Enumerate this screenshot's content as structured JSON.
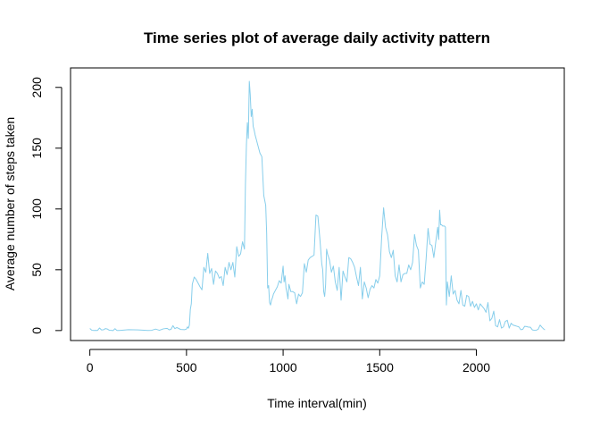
{
  "chart_data": {
    "type": "line",
    "title": "Time series plot of average daily activity pattern",
    "xlabel": "Time interval(min)",
    "ylabel": "Average number of steps taken",
    "xlim": [
      -100,
      2455
    ],
    "ylim": [
      -8.2,
      216
    ],
    "x_ticks": [
      0,
      500,
      1000,
      1500,
      2000
    ],
    "y_ticks": [
      0,
      50,
      100,
      150,
      200
    ],
    "grid": false,
    "legend": "none",
    "series": [
      {
        "color": "#87CEEB",
        "x": [
          0,
          10,
          20,
          30,
          40,
          50,
          60,
          70,
          80,
          90,
          100,
          110,
          120,
          130,
          140,
          150,
          160,
          200,
          250,
          300,
          320,
          340,
          360,
          380,
          400,
          410,
          420,
          430,
          440,
          450,
          470,
          490,
          500,
          505,
          510,
          515,
          520,
          525,
          530,
          540,
          550,
          560,
          570,
          580,
          590,
          600,
          610,
          620,
          630,
          640,
          650,
          660,
          670,
          680,
          690,
          700,
          710,
          720,
          730,
          740,
          750,
          760,
          770,
          780,
          790,
          800,
          805,
          810,
          815,
          820,
          825,
          830,
          835,
          840,
          845,
          850,
          855,
          860,
          870,
          880,
          890,
          900,
          905,
          910,
          915,
          920,
          925,
          930,
          935,
          940,
          945,
          950,
          960,
          970,
          980,
          990,
          1000,
          1005,
          1010,
          1015,
          1020,
          1025,
          1030,
          1040,
          1050,
          1060,
          1070,
          1080,
          1090,
          1100,
          1110,
          1120,
          1130,
          1140,
          1150,
          1160,
          1170,
          1180,
          1190,
          1200,
          1205,
          1210,
          1215,
          1220,
          1225,
          1230,
          1240,
          1250,
          1260,
          1270,
          1280,
          1290,
          1300,
          1310,
          1320,
          1330,
          1340,
          1350,
          1360,
          1370,
          1380,
          1390,
          1400,
          1410,
          1420,
          1430,
          1440,
          1450,
          1460,
          1470,
          1480,
          1490,
          1500,
          1510,
          1520,
          1530,
          1540,
          1545,
          1550,
          1560,
          1570,
          1580,
          1590,
          1600,
          1610,
          1620,
          1630,
          1640,
          1650,
          1660,
          1670,
          1680,
          1690,
          1700,
          1710,
          1720,
          1730,
          1740,
          1750,
          1760,
          1770,
          1780,
          1790,
          1800,
          1805,
          1810,
          1815,
          1820,
          1825,
          1830,
          1835,
          1840,
          1845,
          1850,
          1860,
          1870,
          1880,
          1890,
          1900,
          1910,
          1920,
          1930,
          1940,
          1950,
          1960,
          1970,
          1980,
          1990,
          2000,
          2010,
          2020,
          2030,
          2040,
          2050,
          2060,
          2070,
          2080,
          2090,
          2100,
          2110,
          2120,
          2130,
          2140,
          2150,
          2160,
          2170,
          2180,
          2190,
          2200,
          2210,
          2220,
          2230,
          2240,
          2250,
          2260,
          2270,
          2280,
          2290,
          2300,
          2310,
          2320,
          2330,
          2340,
          2350,
          2355
        ],
        "y": [
          1.7,
          0.3,
          0.1,
          0.2,
          0.1,
          2.1,
          0.5,
          0.6,
          1.6,
          1.3,
          0.3,
          0.2,
          0,
          1.5,
          0.1,
          0.1,
          0.2,
          0.7,
          0.5,
          0.1,
          0.2,
          1.2,
          0.2,
          1.4,
          1.8,
          0.6,
          1.0,
          4.0,
          1.6,
          2.5,
          0.9,
          0.7,
          1.2,
          3.0,
          1.9,
          4.5,
          17.5,
          22.0,
          38.0,
          44.0,
          42.0,
          39.0,
          36.0,
          33.5,
          52.0,
          48.0,
          63.5,
          47.0,
          51.0,
          38.0,
          49.0,
          47.0,
          43.0,
          44.5,
          37.0,
          52.0,
          46.0,
          56.0,
          50.0,
          56.0,
          44.0,
          69.0,
          61.0,
          63.0,
          73.0,
          67.0,
          120.0,
          152.0,
          171.0,
          158.0,
          205.0,
          194.0,
          176.0,
          182.0,
          168.0,
          165.0,
          161.0,
          158.0,
          152.0,
          146.0,
          143.0,
          111.0,
          107.0,
          103.0,
          80.0,
          35.0,
          37.0,
          23.0,
          21.0,
          25.0,
          27.0,
          30.0,
          33.0,
          36.0,
          41.0,
          39.0,
          53.0,
          40.0,
          45.0,
          35.0,
          31.0,
          26.0,
          38.0,
          32.0,
          32.0,
          31.0,
          22.0,
          30.0,
          28.0,
          31.0,
          55.0,
          48.0,
          58.0,
          60.0,
          61.0,
          62.0,
          95.0,
          94.0,
          76.0,
          55.0,
          50.0,
          32.0,
          28.0,
          38.0,
          67.0,
          63.0,
          58.0,
          48.0,
          53.0,
          40.0,
          33.0,
          52.0,
          25.0,
          49.0,
          44.0,
          40.0,
          60.0,
          59.0,
          56.0,
          52.0,
          44.0,
          37.0,
          52.0,
          26.0,
          40.0,
          35.0,
          27.0,
          34.0,
          37.0,
          35.0,
          42.0,
          39.0,
          45.0,
          77.0,
          101.0,
          85.0,
          79.0,
          73.0,
          65.0,
          60.0,
          66.0,
          45.0,
          40.0,
          54.0,
          40.0,
          46.0,
          47.0,
          47.0,
          54.0,
          50.0,
          56.0,
          79.0,
          70.0,
          66.0,
          35.0,
          40.0,
          38.0,
          59.0,
          84.0,
          71.0,
          70.0,
          60.0,
          73.0,
          85.0,
          75.0,
          99.0,
          87.0,
          87.0,
          86.0,
          86.0,
          86.0,
          85.0,
          21.0,
          40.0,
          28.0,
          45.0,
          30.0,
          33.0,
          25.0,
          22.0,
          33.0,
          21.0,
          20.0,
          29.0,
          28.0,
          20.0,
          24.0,
          19.0,
          22.0,
          17.0,
          22.0,
          20.0,
          18.0,
          15.0,
          23.0,
          8.0,
          10.0,
          16.0,
          4.0,
          3.0,
          9.0,
          2.0,
          3.0,
          7.5,
          8.5,
          2.0,
          6.0,
          4.5,
          4.0,
          3.5,
          3.0,
          0.7,
          1.0,
          3.5,
          3.3,
          2.8,
          2.7,
          0.5,
          0.2,
          0.3,
          1.0,
          4.5,
          2.6,
          1.1,
          0.5
        ]
      }
    ]
  }
}
